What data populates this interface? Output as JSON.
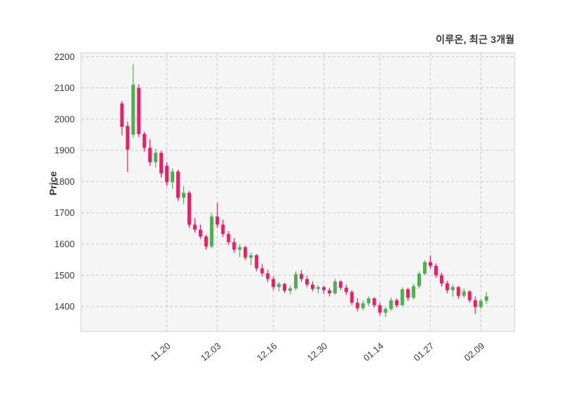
{
  "chart_data": {
    "type": "candlestick",
    "title": "이루온, 최근 3개월",
    "ylabel": "Price",
    "xlabel": "",
    "ylim": [
      1320,
      2212
    ],
    "yticks": [
      1400,
      1500,
      1600,
      1700,
      1800,
      1900,
      2000,
      2100,
      2200
    ],
    "xtick_labels": [
      "11.20",
      "12.03",
      "12.16",
      "12.30",
      "01.14",
      "01.27",
      "02.09"
    ],
    "xtick_indices": [
      8,
      17,
      27,
      36,
      46,
      55,
      64
    ],
    "xtick_rotation": 40,
    "grid": true,
    "legend": false,
    "candle_format": [
      "open",
      "high",
      "low",
      "close"
    ],
    "colors": {
      "up": "#4caf50",
      "down": "#e91e63",
      "grid": "#c9c9c9",
      "plot_border": "#cfcfcf",
      "plot_bg": "#f5f5f6",
      "text": "#3a3a3a"
    },
    "candles": [
      [
        2050,
        2058,
        1948,
        1975
      ],
      [
        1978,
        1992,
        1830,
        1902
      ],
      [
        1950,
        2175,
        1940,
        2110
      ],
      [
        2100,
        2112,
        1942,
        1952
      ],
      [
        1952,
        1960,
        1896,
        1908
      ],
      [
        1908,
        1936,
        1850,
        1862
      ],
      [
        1862,
        1905,
        1845,
        1892
      ],
      [
        1892,
        1898,
        1812,
        1826
      ],
      [
        1850,
        1862,
        1786,
        1798
      ],
      [
        1798,
        1842,
        1776,
        1832
      ],
      [
        1832,
        1838,
        1738,
        1748
      ],
      [
        1748,
        1786,
        1728,
        1764
      ],
      [
        1764,
        1770,
        1652,
        1662
      ],
      [
        1662,
        1684,
        1636,
        1646
      ],
      [
        1646,
        1662,
        1616,
        1624
      ],
      [
        1624,
        1630,
        1582,
        1592
      ],
      [
        1592,
        1698,
        1586,
        1688
      ],
      [
        1688,
        1732,
        1652,
        1662
      ],
      [
        1662,
        1678,
        1622,
        1632
      ],
      [
        1632,
        1642,
        1596,
        1606
      ],
      [
        1606,
        1618,
        1572,
        1582
      ],
      [
        1582,
        1598,
        1558,
        1590
      ],
      [
        1590,
        1594,
        1548,
        1556
      ],
      [
        1556,
        1572,
        1532,
        1564
      ],
      [
        1564,
        1568,
        1512,
        1522
      ],
      [
        1522,
        1536,
        1496,
        1506
      ],
      [
        1506,
        1518,
        1478,
        1488
      ],
      [
        1488,
        1496,
        1452,
        1462
      ],
      [
        1462,
        1478,
        1448,
        1472
      ],
      [
        1472,
        1476,
        1442,
        1450
      ],
      [
        1450,
        1466,
        1438,
        1458
      ],
      [
        1458,
        1512,
        1452,
        1504
      ],
      [
        1504,
        1516,
        1478,
        1488
      ],
      [
        1488,
        1498,
        1462,
        1470
      ],
      [
        1470,
        1480,
        1448,
        1456
      ],
      [
        1456,
        1468,
        1442,
        1462
      ],
      [
        1462,
        1466,
        1440,
        1452
      ],
      [
        1452,
        1460,
        1432,
        1442
      ],
      [
        1442,
        1488,
        1438,
        1480
      ],
      [
        1480,
        1484,
        1452,
        1460
      ],
      [
        1460,
        1470,
        1436,
        1446
      ],
      [
        1446,
        1452,
        1404,
        1412
      ],
      [
        1412,
        1426,
        1384,
        1394
      ],
      [
        1394,
        1418,
        1388,
        1410
      ],
      [
        1410,
        1432,
        1402,
        1426
      ],
      [
        1426,
        1430,
        1396,
        1404
      ],
      [
        1404,
        1412,
        1370,
        1380
      ],
      [
        1380,
        1398,
        1366,
        1392
      ],
      [
        1392,
        1428,
        1386,
        1420
      ],
      [
        1420,
        1426,
        1396,
        1404
      ],
      [
        1404,
        1462,
        1400,
        1455
      ],
      [
        1455,
        1460,
        1418,
        1428
      ],
      [
        1428,
        1472,
        1422,
        1465
      ],
      [
        1465,
        1512,
        1458,
        1505
      ],
      [
        1505,
        1548,
        1500,
        1542
      ],
      [
        1542,
        1562,
        1520,
        1530
      ],
      [
        1530,
        1538,
        1492,
        1500
      ],
      [
        1500,
        1508,
        1464,
        1474
      ],
      [
        1474,
        1482,
        1442,
        1452
      ],
      [
        1452,
        1470,
        1432,
        1462
      ],
      [
        1462,
        1466,
        1424,
        1434
      ],
      [
        1434,
        1458,
        1428,
        1448
      ],
      [
        1448,
        1452,
        1412,
        1420
      ],
      [
        1420,
        1432,
        1376,
        1398
      ],
      [
        1398,
        1425,
        1392,
        1418
      ],
      [
        1418,
        1446,
        1408,
        1432
      ]
    ]
  }
}
